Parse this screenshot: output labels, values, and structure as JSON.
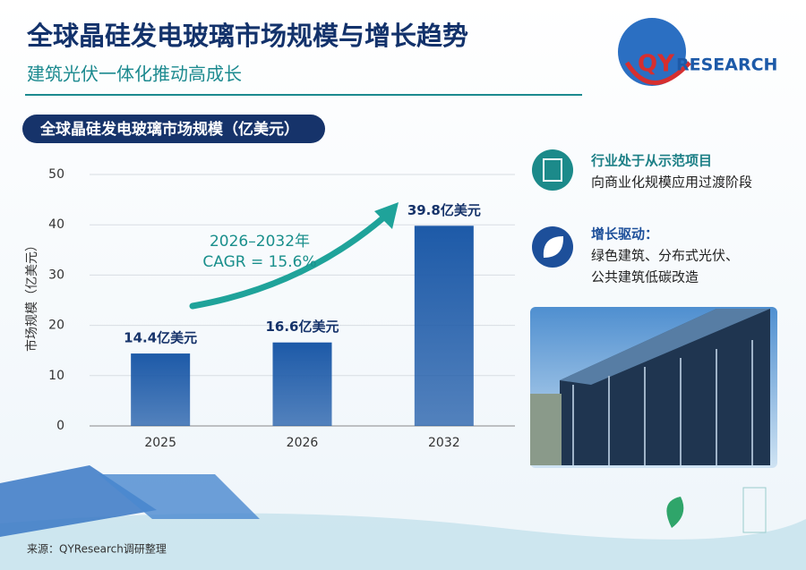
{
  "header": {
    "title": "全球晶硅发电玻璃市场规模与增长趋势",
    "subtitle": "建筑光伏一体化推动高成长",
    "logo_a": "QY",
    "logo_b": "RESEARCH"
  },
  "chart_data": {
    "type": "bar",
    "title": "全球晶硅发电玻璃市场规模（亿美元）",
    "y_label": "市场规模（亿美元）",
    "categories": [
      "2025",
      "2026",
      "2032"
    ],
    "values": [
      14.4,
      16.6,
      39.8
    ],
    "value_labels": [
      "14.4亿美元",
      "16.6亿美元",
      "39.8亿美元"
    ],
    "color": "#1d5aa8",
    "ylim": [
      0,
      50
    ],
    "yticks": [
      0,
      10,
      20,
      30,
      40,
      50
    ],
    "grid": true,
    "annotations": [
      "2026–2032年",
      "CAGR = 15.6%"
    ]
  },
  "panel": {
    "items": [
      {
        "lines": [
          "行业处于从示范项目",
          "向商业化规模应用过渡阶段"
        ]
      },
      {
        "lines": [
          "增长驱动：",
          "绿色建筑、分布式光伏、",
          "公共建筑低碳改造"
        ]
      }
    ]
  },
  "footer": {
    "source": "来源：QYResearch调研整理"
  }
}
